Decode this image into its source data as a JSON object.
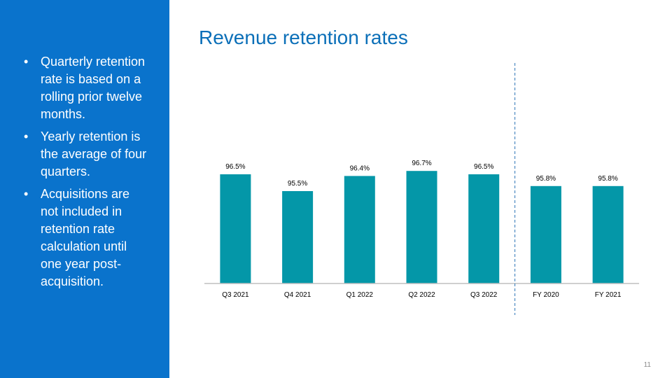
{
  "sidebar": {
    "bullets": [
      "Quarterly retention rate is based on a rolling prior twelve months.",
      "Yearly retention is the average of four quarters.",
      "Acquisitions are not included in retention rate calculation until one year post-acquisition."
    ]
  },
  "page": {
    "title": "Revenue retention rates",
    "number": "11"
  },
  "chart_data": {
    "type": "bar",
    "title": "",
    "xlabel": "",
    "ylabel": "",
    "categories": [
      "Q3 2021",
      "Q4 2021",
      "Q1 2022",
      "Q2 2022",
      "Q3 2022",
      "FY 2020",
      "FY 2021"
    ],
    "values": [
      96.5,
      95.5,
      96.4,
      96.7,
      96.5,
      95.8,
      95.8
    ],
    "data_labels": [
      "96.5%",
      "95.5%",
      "96.4%",
      "96.7%",
      "96.5%",
      "95.8%",
      "95.8%"
    ],
    "ylim": [
      90,
      97.5
    ],
    "separator_after_category": 4,
    "colors": {
      "bar": "#0497a8",
      "axis": "#bfbfbf",
      "separator": "#2e75b6",
      "label": "#000000"
    },
    "grid": false,
    "legend": "none"
  }
}
